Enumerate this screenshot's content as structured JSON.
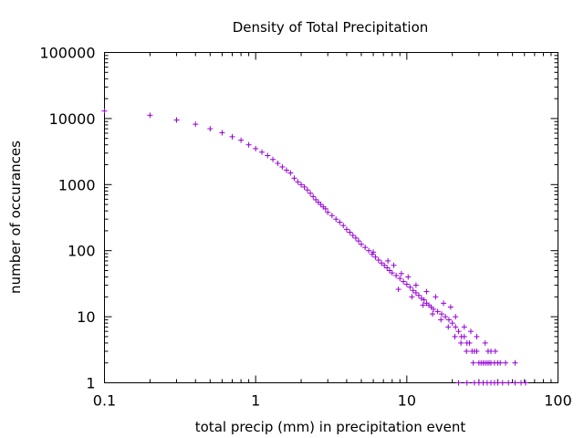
{
  "chart_data": {
    "type": "scatter",
    "title": "Density of Total Precipitation",
    "xlabel": "total precip (mm) in precipitation event",
    "ylabel": "number of occurances",
    "xscale": "log",
    "yscale": "log",
    "xlim": [
      0.1,
      100
    ],
    "ylim": [
      1,
      100000
    ],
    "xticks": [
      0.1,
      1,
      10,
      100
    ],
    "xtick_labels": [
      "0.1",
      "1",
      "10",
      "100"
    ],
    "yticks": [
      1,
      10,
      100,
      1000,
      10000,
      100000
    ],
    "ytick_labels": [
      "1",
      "10",
      "100",
      "1000",
      "10000",
      "100000"
    ],
    "grid": false,
    "legend": "none",
    "marker": "+",
    "color": "#9400d3",
    "points": [
      [
        0.1,
        13000
      ],
      [
        0.2,
        11200
      ],
      [
        0.3,
        9500
      ],
      [
        0.4,
        8200
      ],
      [
        0.5,
        7000
      ],
      [
        0.6,
        6100
      ],
      [
        0.7,
        5300
      ],
      [
        0.8,
        4700
      ],
      [
        0.9,
        4000
      ],
      [
        1.0,
        3500
      ],
      [
        1.1,
        3100
      ],
      [
        1.2,
        2750
      ],
      [
        1.3,
        2400
      ],
      [
        1.4,
        2100
      ],
      [
        1.5,
        1850
      ],
      [
        1.6,
        1650
      ],
      [
        1.7,
        1500
      ],
      [
        1.8,
        1250
      ],
      [
        1.9,
        1100
      ],
      [
        2.0,
        1000
      ],
      [
        2.1,
        920
      ],
      [
        2.2,
        830
      ],
      [
        2.3,
        740
      ],
      [
        2.4,
        660
      ],
      [
        2.5,
        590
      ],
      [
        2.6,
        540
      ],
      [
        2.7,
        500
      ],
      [
        2.8,
        460
      ],
      [
        2.9,
        430
      ],
      [
        3.0,
        380
      ],
      [
        3.2,
        340
      ],
      [
        3.4,
        300
      ],
      [
        3.6,
        270
      ],
      [
        3.8,
        240
      ],
      [
        4.0,
        210
      ],
      [
        4.2,
        190
      ],
      [
        4.4,
        170
      ],
      [
        4.6,
        155
      ],
      [
        4.8,
        140
      ],
      [
        5.0,
        125
      ],
      [
        5.3,
        112
      ],
      [
        5.6,
        100
      ],
      [
        5.9,
        88
      ],
      [
        6.2,
        80
      ],
      [
        6.5,
        72
      ],
      [
        6.8,
        65
      ],
      [
        7.1,
        60
      ],
      [
        7.4,
        55
      ],
      [
        7.7,
        50
      ],
      [
        8.0,
        46
      ],
      [
        8.5,
        42
      ],
      [
        9.0,
        38
      ],
      [
        9.5,
        34
      ],
      [
        10.0,
        31
      ],
      [
        10.5,
        28
      ],
      [
        11.0,
        25
      ],
      [
        11.5,
        23
      ],
      [
        12.0,
        21
      ],
      [
        12.5,
        19
      ],
      [
        13.0,
        18
      ],
      [
        13.5,
        16
      ],
      [
        14.0,
        15
      ],
      [
        14.5,
        14
      ],
      [
        15.0,
        13
      ],
      [
        16.0,
        12
      ],
      [
        17.0,
        11
      ],
      [
        18.0,
        10
      ],
      [
        19.0,
        9
      ],
      [
        20.0,
        8
      ],
      [
        21.0,
        7
      ],
      [
        22.0,
        6
      ],
      [
        23.0,
        5
      ],
      [
        24.0,
        5
      ],
      [
        25.0,
        4
      ],
      [
        26.0,
        4
      ],
      [
        27.0,
        3
      ],
      [
        28.0,
        3
      ],
      [
        29.0,
        3
      ],
      [
        30.0,
        2
      ],
      [
        31.0,
        2
      ],
      [
        32.0,
        2
      ],
      [
        33.0,
        2
      ],
      [
        34.0,
        2
      ],
      [
        35.0,
        2
      ],
      [
        36.0,
        2
      ],
      [
        38.0,
        2
      ],
      [
        40.0,
        2
      ],
      [
        22.0,
        1
      ],
      [
        25.0,
        1
      ],
      [
        28.0,
        1
      ],
      [
        30.0,
        1
      ],
      [
        32.0,
        1
      ],
      [
        34.0,
        1
      ],
      [
        36.0,
        1
      ],
      [
        38.0,
        1
      ],
      [
        40.0,
        1
      ],
      [
        43.0,
        1
      ],
      [
        47.0,
        1
      ],
      [
        52.0,
        1
      ],
      [
        57.0,
        1
      ],
      [
        61.0,
        1
      ],
      [
        6.0,
        95
      ],
      [
        7.5,
        70
      ],
      [
        8.2,
        60
      ],
      [
        9.2,
        45
      ],
      [
        10.2,
        40
      ],
      [
        11.5,
        30
      ],
      [
        13.5,
        24
      ],
      [
        15.5,
        20
      ],
      [
        17.5,
        16
      ],
      [
        19.5,
        14
      ],
      [
        21.0,
        10
      ],
      [
        24.0,
        7
      ],
      [
        26.5,
        6
      ],
      [
        29.0,
        5
      ],
      [
        33.0,
        4
      ],
      [
        36.0,
        3
      ],
      [
        45.0,
        2
      ],
      [
        52.0,
        2
      ],
      [
        8.8,
        26
      ],
      [
        10.8,
        20
      ],
      [
        12.8,
        15
      ],
      [
        14.8,
        11
      ],
      [
        16.8,
        9
      ],
      [
        18.8,
        7
      ],
      [
        20.8,
        5
      ],
      [
        22.8,
        4
      ],
      [
        24.8,
        3
      ],
      [
        27.5,
        2
      ],
      [
        34.5,
        3
      ],
      [
        38.5,
        3
      ],
      [
        41.5,
        2
      ]
    ]
  }
}
